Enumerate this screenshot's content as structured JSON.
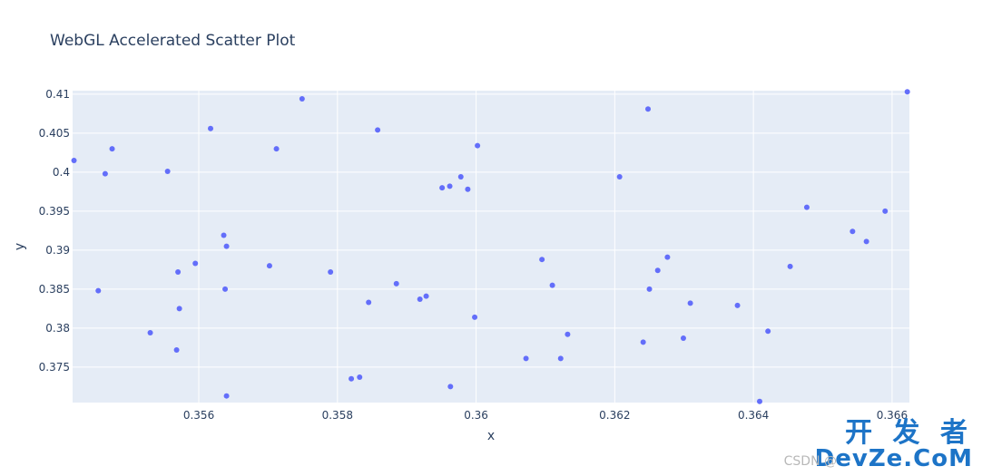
{
  "chart_data": {
    "type": "scatter",
    "title": "WebGL Accelerated Scatter Plot",
    "xlabel": "x",
    "ylabel": "y",
    "xlim": [
      0.35418,
      0.36625
    ],
    "ylim": [
      0.37045,
      0.41045
    ],
    "xticks": [
      0.356,
      0.358,
      0.36,
      0.362,
      0.364,
      0.366
    ],
    "xtick_labels": [
      "0.356",
      "0.358",
      "0.36",
      "0.362",
      "0.364",
      "0.366"
    ],
    "yticks": [
      0.375,
      0.38,
      0.385,
      0.39,
      0.395,
      0.4,
      0.405,
      0.41
    ],
    "ytick_labels": [
      "0.375",
      "0.38",
      "0.385",
      "0.39",
      "0.395",
      "0.4",
      "0.405",
      "0.41"
    ],
    "grid": true,
    "marker_color": "#636efa",
    "plot_bgcolor": "#e5ecf6",
    "points": [
      [
        0.3542,
        0.4015
      ],
      [
        0.35455,
        0.3848
      ],
      [
        0.35465,
        0.3998
      ],
      [
        0.35475,
        0.403
      ],
      [
        0.3553,
        0.3794
      ],
      [
        0.35555,
        0.4001
      ],
      [
        0.35568,
        0.3772
      ],
      [
        0.3557,
        0.3872
      ],
      [
        0.35572,
        0.3825
      ],
      [
        0.35595,
        0.3883
      ],
      [
        0.35617,
        0.4056
      ],
      [
        0.35636,
        0.3919
      ],
      [
        0.35638,
        0.385
      ],
      [
        0.3564,
        0.3905
      ],
      [
        0.3564,
        0.3713
      ],
      [
        0.35702,
        0.388
      ],
      [
        0.35712,
        0.403
      ],
      [
        0.35749,
        0.4094
      ],
      [
        0.3579,
        0.3872
      ],
      [
        0.3582,
        0.3735
      ],
      [
        0.35832,
        0.3737
      ],
      [
        0.35845,
        0.3833
      ],
      [
        0.35858,
        0.4054
      ],
      [
        0.35885,
        0.3857
      ],
      [
        0.35919,
        0.3837
      ],
      [
        0.35928,
        0.3841
      ],
      [
        0.35951,
        0.398
      ],
      [
        0.35962,
        0.3982
      ],
      [
        0.35963,
        0.3725
      ],
      [
        0.35978,
        0.3994
      ],
      [
        0.35988,
        0.3978
      ],
      [
        0.35998,
        0.3814
      ],
      [
        0.36002,
        0.4034
      ],
      [
        0.36072,
        0.3761
      ],
      [
        0.36095,
        0.3888
      ],
      [
        0.3611,
        0.3855
      ],
      [
        0.36122,
        0.3761
      ],
      [
        0.36132,
        0.3792
      ],
      [
        0.36207,
        0.3994
      ],
      [
        0.36241,
        0.3782
      ],
      [
        0.36248,
        0.4081
      ],
      [
        0.3625,
        0.385
      ],
      [
        0.36262,
        0.3874
      ],
      [
        0.36276,
        0.3891
      ],
      [
        0.36299,
        0.3787
      ],
      [
        0.36309,
        0.3832
      ],
      [
        0.36377,
        0.3829
      ],
      [
        0.36409,
        0.3706
      ],
      [
        0.36421,
        0.3796
      ],
      [
        0.36453,
        0.3879
      ],
      [
        0.36477,
        0.3955
      ],
      [
        0.36543,
        0.3924
      ],
      [
        0.36563,
        0.3911
      ],
      [
        0.3659,
        0.395
      ],
      [
        0.36622,
        0.4103
      ]
    ]
  },
  "watermark": {
    "logo_line1": "开 发 者",
    "logo_line2": "DevZe.CoM",
    "csdn_text": "CSDN @"
  }
}
